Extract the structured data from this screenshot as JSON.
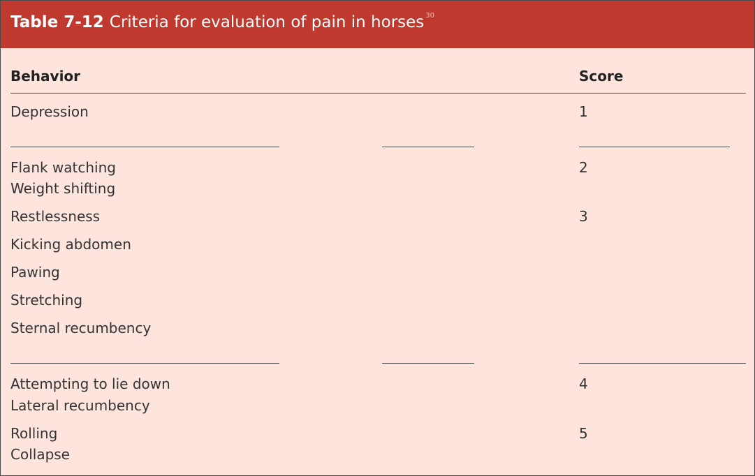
{
  "title": {
    "label": "Table 7-12",
    "text": "Criteria for evaluation of pain in horses",
    "ref": "30"
  },
  "columns": {
    "behavior": "Behavior",
    "score": "Score"
  },
  "rows": [
    {
      "behavior": "Depression",
      "score": "1"
    },
    {
      "behavior": "Flank watching",
      "score": "2"
    },
    {
      "behavior": "Weight shifting",
      "score": ""
    },
    {
      "behavior": "Restlessness",
      "score": "3"
    },
    {
      "behavior": "Kicking abdomen",
      "score": ""
    },
    {
      "behavior": "Pawing",
      "score": ""
    },
    {
      "behavior": "Stretching",
      "score": ""
    },
    {
      "behavior": "Sternal recumbency",
      "score": ""
    },
    {
      "behavior": "Attempting to lie down",
      "score": "4"
    },
    {
      "behavior": "Lateral recumbency",
      "score": ""
    },
    {
      "behavior": "Rolling",
      "score": "5"
    },
    {
      "behavior": "Collapse",
      "score": ""
    }
  ],
  "colors": {
    "header_bg": "#c0392f",
    "table_bg": "#fde4dc",
    "rule": "#4a4a4a"
  }
}
